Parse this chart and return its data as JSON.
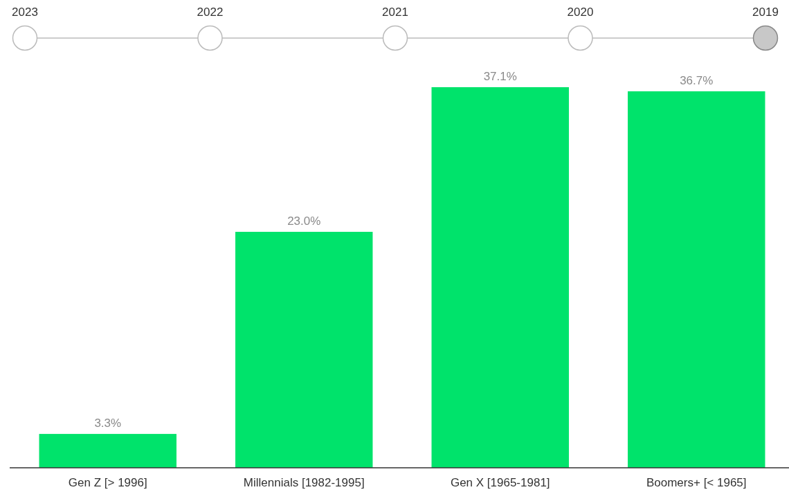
{
  "chart_data": {
    "type": "bar",
    "categories": [
      "Gen Z [> 1996]",
      "Millennials [1982-1995]",
      "Gen X [1965-1981]",
      "Boomers+ [< 1965]"
    ],
    "values": [
      3.3,
      23.0,
      37.1,
      36.7
    ],
    "value_labels": [
      "3.3%",
      "23.0%",
      "37.1%",
      "36.7%"
    ],
    "color": "#00e36b",
    "annotations": [
      "2023",
      "2022",
      "2021",
      "2020",
      "2019"
    ]
  }
}
